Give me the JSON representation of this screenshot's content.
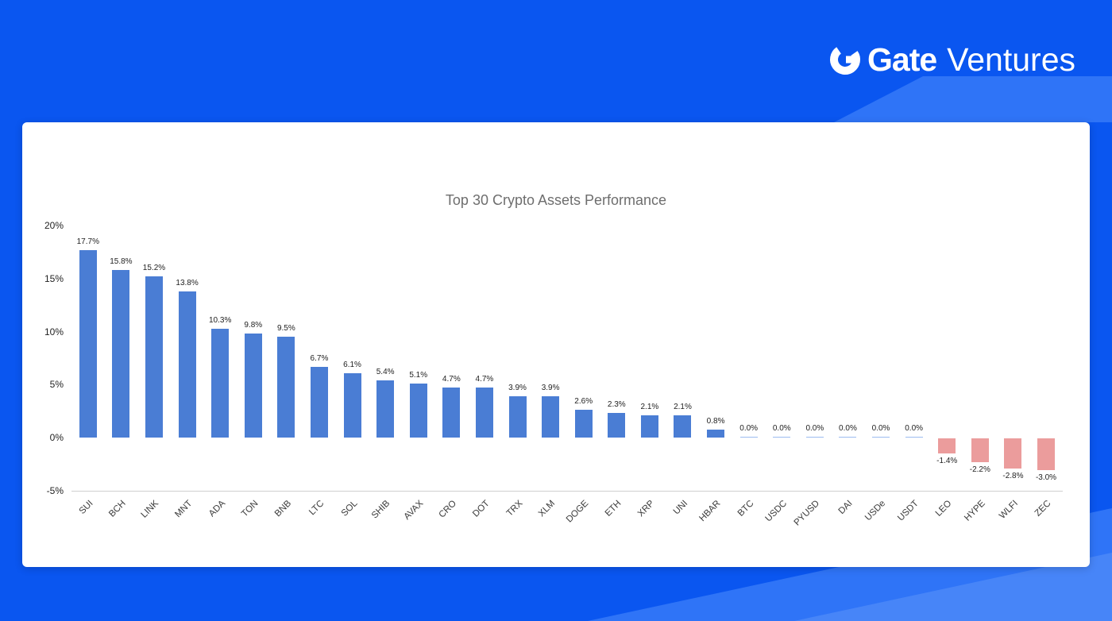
{
  "brand": {
    "name_bold": "Gate",
    "name_light": "Ventures",
    "icon": "gate-logo-icon",
    "text_color": "#ffffff"
  },
  "colors": {
    "background": "#0a56f0",
    "accent_band": "#2f74f7",
    "card_background": "#ffffff",
    "positive_bar": "#4a7dd4",
    "negative_bar": "#eb9c9c",
    "title_text": "#6e6e6e"
  },
  "chart_data": {
    "type": "bar",
    "title": "Top 30 Crypto Assets Performance",
    "categories": [
      "SUI",
      "BCH",
      "LINK",
      "MNT",
      "ADA",
      "TON",
      "BNB",
      "LTC",
      "SOL",
      "SHIB",
      "AVAX",
      "CRO",
      "DOT",
      "TRX",
      "XLM",
      "DOGE",
      "ETH",
      "XRP",
      "UNI",
      "HBAR",
      "BTC",
      "USDC",
      "PYUSD",
      "DAI",
      "USDe",
      "USDT",
      "LEO",
      "HYPE",
      "WLFI",
      "ZEC"
    ],
    "values": [
      17.7,
      15.8,
      15.2,
      13.8,
      10.3,
      9.8,
      9.5,
      6.7,
      6.1,
      5.4,
      5.1,
      4.7,
      4.7,
      3.9,
      3.9,
      2.6,
      2.3,
      2.1,
      2.1,
      0.8,
      0.0,
      0.0,
      0.0,
      0.0,
      0.0,
      0.0,
      -1.4,
      -2.2,
      -2.8,
      -3.0
    ],
    "value_labels": [
      "17.7%",
      "15.8%",
      "15.2%",
      "13.8%",
      "10.3%",
      "9.8%",
      "9.5%",
      "6.7%",
      "6.1%",
      "5.4%",
      "5.1%",
      "4.7%",
      "4.7%",
      "3.9%",
      "3.9%",
      "2.6%",
      "2.3%",
      "2.1%",
      "2.1%",
      "0.8%",
      "0.0%",
      "0.0%",
      "0.0%",
      "0.0%",
      "0.0%",
      "0.0%",
      "-1.4%",
      "-2.2%",
      "-2.8%",
      "-3.0%"
    ],
    "y_ticks": [
      "20%",
      "15%",
      "10%",
      "5%",
      "0%",
      "-5%"
    ],
    "ylim": [
      -5,
      20
    ],
    "xlabel": "",
    "ylabel": "",
    "grid": false,
    "legend": "none",
    "positive_color": "#4a7dd4",
    "negative_color": "#eb9c9c"
  }
}
